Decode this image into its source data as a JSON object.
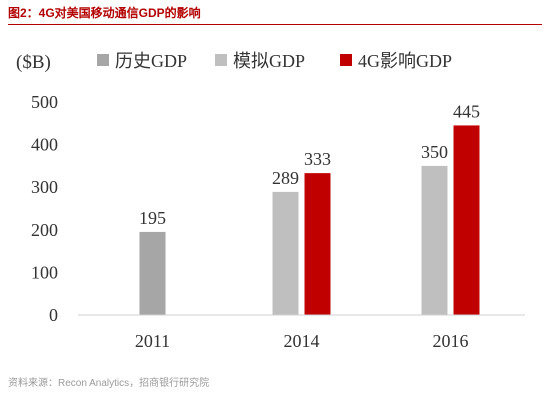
{
  "figure_title": "图2：4G对美国移动通信GDP的影响",
  "source_note": "资料来源：Recon Analytics，招商银行研究院",
  "chart_data": {
    "type": "bar",
    "title": "",
    "ylabel": "($B)",
    "xlabel": "",
    "categories": [
      "2011",
      "2014",
      "2016"
    ],
    "series": [
      {
        "name": "历史GDP",
        "color": "#a6a6a6",
        "values": [
          195,
          null,
          null
        ]
      },
      {
        "name": "模拟GDP",
        "color": "#bfbfbf",
        "values": [
          null,
          289,
          350
        ]
      },
      {
        "name": "4G影响GDP",
        "color": "#c00000",
        "values": [
          null,
          333,
          445
        ]
      }
    ],
    "yticks": [
      0,
      100,
      200,
      300,
      400,
      500
    ],
    "ylim": [
      0,
      500
    ],
    "grid": false,
    "legend_position": "top",
    "data_labels": true
  }
}
